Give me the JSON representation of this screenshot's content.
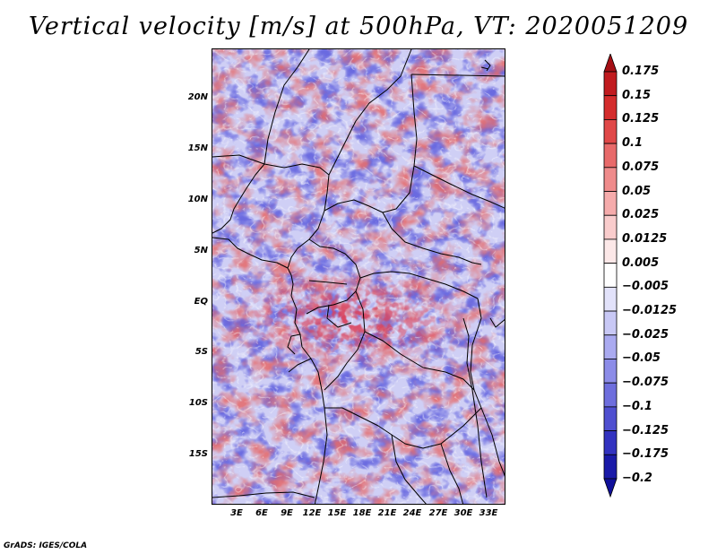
{
  "title": "Vertical velocity [m/s] at 500hPa, VT: 2020051209",
  "credit": "GrADS: IGES/COLA",
  "axes": {
    "lat_labels": [
      "20N",
      "15N",
      "10N",
      "5N",
      "EQ",
      "5S",
      "10S",
      "15S"
    ],
    "lon_labels": [
      "3E",
      "6E",
      "9E",
      "12E",
      "15E",
      "18E",
      "21E",
      "24E",
      "27E",
      "30E",
      "33E"
    ]
  },
  "colorbar": {
    "labels": [
      "0.175",
      "0.15",
      "0.125",
      "0.1",
      "0.075",
      "0.05",
      "0.025",
      "0.0125",
      "0.005",
      "−0.005",
      "−0.0125",
      "−0.025",
      "−0.05",
      "−0.075",
      "−0.1",
      "−0.125",
      "−0.175",
      "−0.2"
    ],
    "colors": [
      "#a50f15",
      "#c11b1f",
      "#d42c2c",
      "#e04848",
      "#e86a6a",
      "#ef8b8b",
      "#f5abab",
      "#f9cccc",
      "#fce8e8",
      "#ffffff",
      "#e2e2fa",
      "#c8c8f5",
      "#aaaaf0",
      "#8c8ce8",
      "#6e6edd",
      "#4f4fd0",
      "#3232c0",
      "#1a1aa8",
      "#10109a"
    ]
  }
}
